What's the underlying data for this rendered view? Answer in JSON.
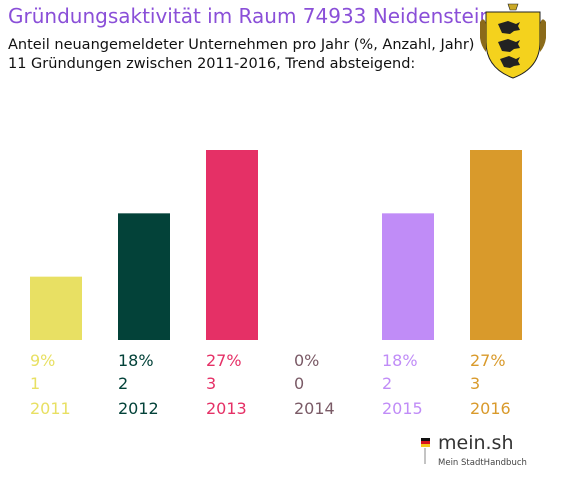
{
  "header": {
    "title": "Gründungsaktivität im Raum 74933 Neidenstein",
    "subtitle_line1": "Anteil neuangemeldeter Unternehmen pro Jahr (%, Anzahl, Jahr)",
    "subtitle_line2": "11 Gründungen zwischen 2011-2016, Trend absteigend:"
  },
  "emblem": {
    "icon": "coat-of-arms-icon"
  },
  "brand": {
    "name": "mein.sh",
    "tagline": "Mein StadtHandbuch",
    "icon": "map-pin-icon"
  },
  "chart_data": {
    "type": "bar",
    "categories": [
      "2011",
      "2012",
      "2013",
      "2014",
      "2015",
      "2016"
    ],
    "values": [
      9,
      18,
      27,
      0,
      18,
      27
    ],
    "percent_labels": [
      "9%",
      "18%",
      "27%",
      "0%",
      "18%",
      "27%"
    ],
    "counts": [
      1,
      2,
      3,
      0,
      2,
      3
    ],
    "colors": [
      "#e8e063",
      "#034239",
      "#e53066",
      "#7a5a66",
      "#c08cf7",
      "#d99a2b"
    ],
    "title": "Gründungsaktivität im Raum 74933 Neidenstein",
    "ylim": [
      0,
      27
    ]
  }
}
